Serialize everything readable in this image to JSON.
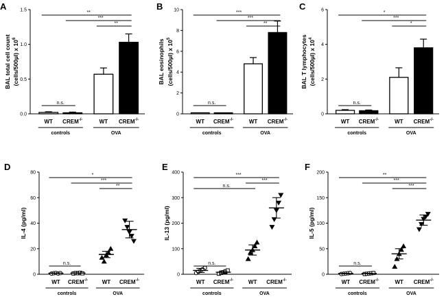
{
  "chart_data": [
    {
      "panel": "A",
      "type": "bar",
      "ylabel_1": "BAL total cell count",
      "ylabel_2": "(cells/500µl) x 10",
      "ylabel_sup": "6",
      "yticks": [
        "0.0",
        "0.5",
        "1.0",
        "1.5"
      ],
      "ytick_values": [
        0,
        0.5,
        1.0,
        1.5
      ],
      "ylim": [
        0,
        1.5
      ],
      "categories": [
        "WT",
        "CREM",
        "WT",
        "CREM"
      ],
      "category_sup": [
        "",
        "-/-",
        "",
        "-/-"
      ],
      "groups": [
        {
          "name": "controls"
        },
        {
          "name": "OVA"
        }
      ],
      "values": [
        0.02,
        0.015,
        0.57,
        1.03
      ],
      "errors": [
        0.01,
        0.01,
        0.09,
        0.12
      ],
      "fills": [
        "#ffffff",
        "#000000",
        "#ffffff",
        "#000000"
      ],
      "sig": [
        {
          "from": 0,
          "to": 3,
          "label": "**"
        },
        {
          "from": 1,
          "to": 3,
          "label": "***"
        },
        {
          "from": 2,
          "to": 3,
          "label": "**"
        },
        {
          "from": 0,
          "to": 1,
          "label": "n.s."
        }
      ]
    },
    {
      "panel": "B",
      "type": "bar",
      "ylabel_1": "BAL eosinophils",
      "ylabel_2": "(cells/500µl) x 10",
      "ylabel_sup": "5",
      "yticks": [
        "0",
        "2",
        "4",
        "6",
        "8",
        "10"
      ],
      "ytick_values": [
        0,
        2,
        4,
        6,
        8,
        10
      ],
      "ylim": [
        0,
        10
      ],
      "categories": [
        "WT",
        "CREM",
        "WT",
        "CREM"
      ],
      "category_sup": [
        "",
        "-/-",
        "",
        "-/-"
      ],
      "groups": [
        {
          "name": "controls"
        },
        {
          "name": "OVA"
        }
      ],
      "values": [
        0.0,
        0.0,
        4.8,
        7.8
      ],
      "errors": [
        0,
        0,
        0.6,
        1.1
      ],
      "fills": [
        "#ffffff",
        "#000000",
        "#ffffff",
        "#000000"
      ],
      "sig": [
        {
          "from": 0,
          "to": 3,
          "label": "***"
        },
        {
          "from": 1,
          "to": 3,
          "label": "***"
        },
        {
          "from": 2,
          "to": 3,
          "label": "**"
        },
        {
          "from": 0,
          "to": 1,
          "label": "n.s."
        }
      ]
    },
    {
      "panel": "C",
      "type": "bar",
      "ylabel_1": "BAL T lymphocytes",
      "ylabel_2": "(cells/500µl) x 10",
      "ylabel_sup": "4",
      "yticks": [
        "0",
        "2",
        "4",
        "6"
      ],
      "ytick_values": [
        0,
        2,
        4,
        6
      ],
      "ylim": [
        0,
        6
      ],
      "categories": [
        "WT",
        "CREM",
        "WT",
        "CREM"
      ],
      "category_sup": [
        "",
        "-/-",
        "",
        "-/-"
      ],
      "groups": [
        {
          "name": "controls"
        },
        {
          "name": "OVA"
        }
      ],
      "values": [
        0.2,
        0.18,
        2.1,
        3.8
      ],
      "errors": [
        0.04,
        0.04,
        0.55,
        0.5
      ],
      "fills": [
        "#ffffff",
        "#000000",
        "#ffffff",
        "#000000"
      ],
      "sig": [
        {
          "from": 0,
          "to": 3,
          "label": "*"
        },
        {
          "from": 1,
          "to": 3,
          "label": "***"
        },
        {
          "from": 2,
          "to": 3,
          "label": "*"
        },
        {
          "from": 0,
          "to": 1,
          "label": "n.s."
        }
      ]
    },
    {
      "panel": "D",
      "type": "scatter",
      "ylabel_1": "IL-4 (pg/ml)",
      "yticks": [
        "0",
        "20",
        "40",
        "60",
        "80"
      ],
      "ytick_values": [
        0,
        20,
        40,
        60,
        80
      ],
      "ylim": [
        0,
        80
      ],
      "categories": [
        "WT",
        "CREM",
        "WT",
        "CREM"
      ],
      "category_sup": [
        "",
        "-/-",
        "",
        "-/-"
      ],
      "groups": [
        {
          "name": "controls"
        },
        {
          "name": "OVA"
        }
      ],
      "markers": [
        "circle",
        "square",
        "triangle-up",
        "triangle-down"
      ],
      "points": [
        [
          0.5,
          0.8,
          1.0,
          0.6,
          0.9
        ],
        [
          0.6,
          1.0,
          0.8,
          1.2,
          0.7
        ],
        [
          13,
          10,
          15,
          17,
          20
        ],
        [
          42,
          37,
          33,
          30,
          26
        ]
      ],
      "means": [
        0.8,
        0.9,
        15.5,
        35
      ],
      "sems": [
        0.2,
        0.2,
        2.5,
        6.5
      ],
      "sig": [
        {
          "from": 0,
          "to": 3,
          "label": "*"
        },
        {
          "from": 1,
          "to": 3,
          "label": "***"
        },
        {
          "from": 2,
          "to": 3,
          "label": "**"
        },
        {
          "from": 0,
          "to": 1,
          "label": "n.s."
        }
      ]
    },
    {
      "panel": "E",
      "type": "scatter",
      "ylabel_1": "IL-13 (pg/ml)",
      "yticks": [
        "0",
        "100",
        "200",
        "300",
        "400"
      ],
      "ytick_values": [
        0,
        100,
        200,
        300,
        400
      ],
      "ylim": [
        0,
        400
      ],
      "categories": [
        "WT",
        "CREM",
        "WT",
        "CREM"
      ],
      "category_sup": [
        "",
        "-/-",
        "",
        "-/-"
      ],
      "groups": [
        {
          "name": "controls"
        },
        {
          "name": "OVA"
        }
      ],
      "markers": [
        "circle",
        "square",
        "triangle-up",
        "triangle-down"
      ],
      "points": [
        [
          5,
          10,
          15,
          20,
          25
        ],
        [
          2,
          5,
          8,
          12,
          15
        ],
        [
          60,
          85,
          95,
          110,
          125
        ],
        [
          185,
          215,
          250,
          280,
          310
        ]
      ],
      "means": [
        15,
        8,
        95,
        260
      ],
      "sems": [
        8,
        5,
        20,
        40
      ],
      "sig": [
        {
          "from": 0,
          "to": 3,
          "label": "***"
        },
        {
          "from": 2,
          "to": 3,
          "label": "***"
        },
        {
          "from": 0,
          "to": 2,
          "label": "n.s."
        },
        {
          "from": 0,
          "to": 1,
          "label": "n.s."
        }
      ]
    },
    {
      "panel": "F",
      "type": "scatter",
      "ylabel_1": "IL-5 (pg/ml)",
      "yticks": [
        "0",
        "50",
        "100",
        "150",
        "200"
      ],
      "ytick_values": [
        0,
        50,
        100,
        150,
        200
      ],
      "ylim": [
        0,
        200
      ],
      "categories": [
        "WT",
        "CREM",
        "WT",
        "CREM"
      ],
      "category_sup": [
        "",
        "-/-",
        "",
        "-/-"
      ],
      "groups": [
        {
          "name": "controls"
        },
        {
          "name": "OVA"
        }
      ],
      "markers": [
        "circle",
        "square",
        "triangle-up",
        "triangle-down"
      ],
      "points": [
        [
          0.5,
          1,
          1.5,
          2,
          2.5
        ],
        [
          0.5,
          1,
          1.5,
          2,
          2.5
        ],
        [
          15,
          30,
          40,
          48,
          55
        ],
        [
          88,
          98,
          108,
          113,
          118
        ]
      ],
      "means": [
        1.5,
        1.5,
        40,
        106
      ],
      "sems": [
        0.5,
        0.5,
        10,
        10
      ],
      "sig": [
        {
          "from": 0,
          "to": 3,
          "label": "**"
        },
        {
          "from": 1,
          "to": 3,
          "label": "***"
        },
        {
          "from": 2,
          "to": 3,
          "label": "***"
        },
        {
          "from": 0,
          "to": 1,
          "label": "n.s."
        }
      ]
    }
  ]
}
